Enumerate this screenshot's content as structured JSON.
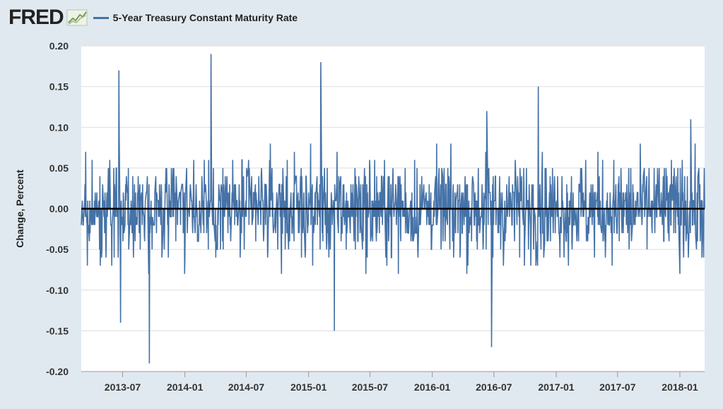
{
  "header": {
    "logo_text": "FRED",
    "logo_icon": "line-chart-icon"
  },
  "colors": {
    "background": "#e1e9f0",
    "plot_background": "#ffffff",
    "series": "#4572a7",
    "zero_line": "#000000",
    "grid": "#dddddd"
  },
  "chart_data": {
    "type": "line",
    "title": "",
    "xlabel": "",
    "ylabel": "Change, Percent",
    "ylim": [
      -0.2,
      0.2
    ],
    "yticks": [
      "0.20",
      "0.15",
      "0.10",
      "0.05",
      "0.00",
      "-0.05",
      "-0.10",
      "-0.15",
      "-0.20"
    ],
    "x_range": [
      "2013-03-01",
      "2018-03-15"
    ],
    "xticks": [
      "2013-07",
      "2014-01",
      "2014-07",
      "2015-01",
      "2015-07",
      "2016-01",
      "2016-07",
      "2017-01",
      "2017-07",
      "2018-01"
    ],
    "grid": true,
    "legend_position": "top-left",
    "series": [
      {
        "name": "5-Year Treasury Constant Maturity Rate",
        "frequency": "daily",
        "notable_points": [
          {
            "x": "2013-06-20",
            "y": 0.17
          },
          {
            "x": "2013-06-25",
            "y": -0.14
          },
          {
            "x": "2013-09-18",
            "y": -0.19
          },
          {
            "x": "2014-03-19",
            "y": 0.19
          },
          {
            "x": "2015-02-06",
            "y": 0.18
          },
          {
            "x": "2015-03-18",
            "y": -0.15
          },
          {
            "x": "2016-06-24",
            "y": -0.17
          },
          {
            "x": "2016-06-10",
            "y": 0.12
          },
          {
            "x": "2016-11-09",
            "y": 0.15
          },
          {
            "x": "2018-02-02",
            "y": 0.11
          }
        ]
      }
    ]
  }
}
